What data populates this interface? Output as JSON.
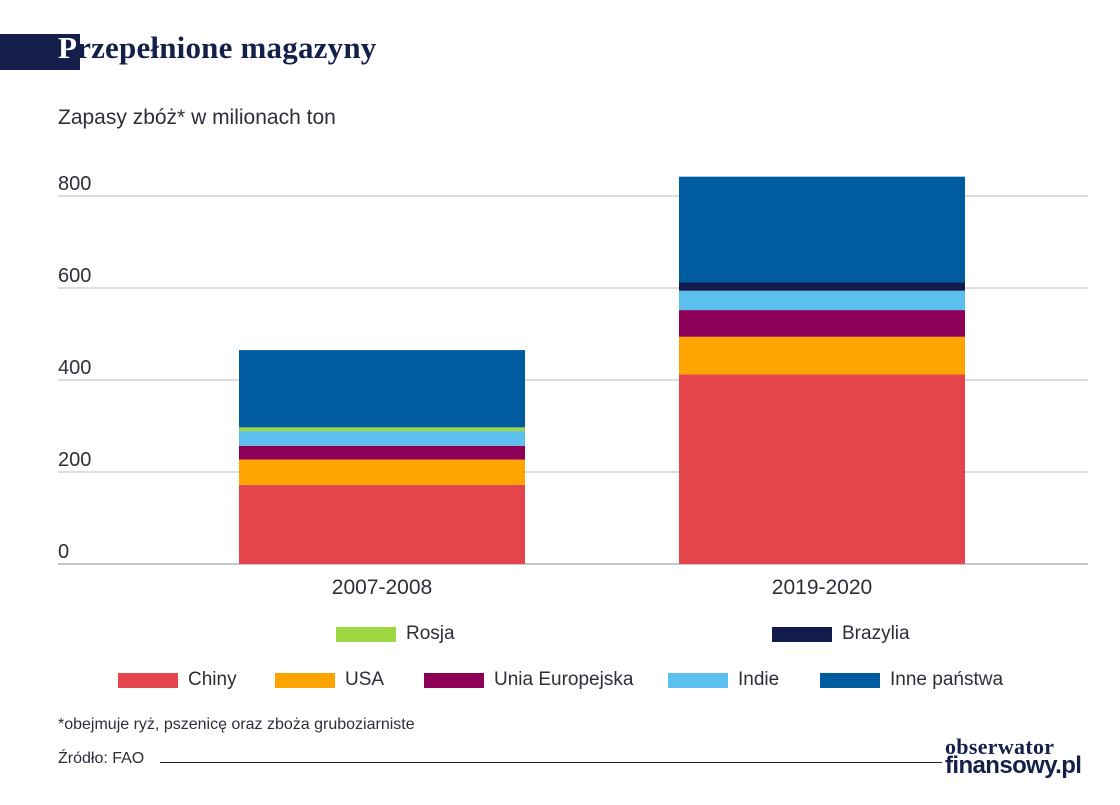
{
  "header": {
    "title_initial": "P",
    "title_rest": "rzepełnione magazyny"
  },
  "subtitle": "Zapasy zbóż* w milionach ton",
  "chart_data": {
    "type": "bar",
    "stacked": true,
    "categories": [
      "2007-2008",
      "2019-2020"
    ],
    "series": [
      {
        "name": "Chiny",
        "color": "#e4444b",
        "values": [
          172,
          412
        ]
      },
      {
        "name": "USA",
        "color": "#fea400",
        "values": [
          55,
          82
        ]
      },
      {
        "name": "Unia Europejska",
        "color": "#8e0057",
        "values": [
          30,
          58
        ]
      },
      {
        "name": "Indie",
        "color": "#5bc0ee",
        "values": [
          32,
          42
        ]
      },
      {
        "name": "Rosja",
        "color": "#9ed742",
        "values": [
          8,
          0
        ]
      },
      {
        "name": "Brazylia",
        "color": "#111c4d",
        "values": [
          0,
          18
        ]
      },
      {
        "name": "Inne państwa",
        "color": "#005ca1",
        "values": [
          168,
          230
        ]
      }
    ],
    "yticks": [
      0,
      200,
      400,
      600,
      800
    ],
    "ylim": [
      0,
      860
    ],
    "grid": true,
    "legend_position": "bottom"
  },
  "footnote": "*obejmuje ryż, pszenicę oraz zboża gruboziarniste",
  "source": "Źródło: FAO",
  "logo": {
    "line1": "obserwator",
    "line2": "finansowy.pl"
  }
}
